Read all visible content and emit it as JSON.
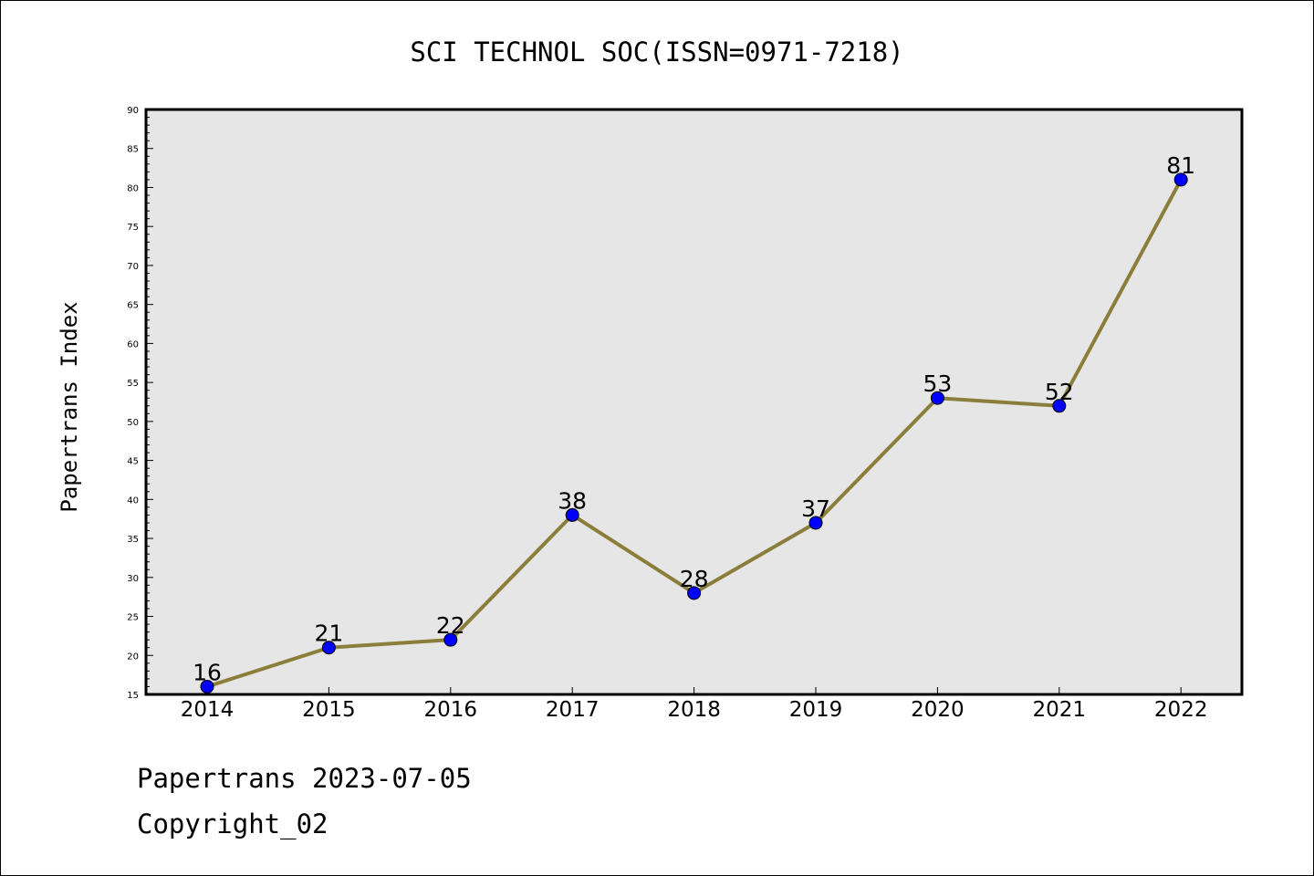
{
  "chart_data": {
    "type": "line",
    "title": "SCI TECHNOL SOC(ISSN=0971-7218)",
    "xlabel": "",
    "ylabel": "Papertrans Index",
    "categories": [
      "2014",
      "2015",
      "2016",
      "2017",
      "2018",
      "2019",
      "2020",
      "2021",
      "2022"
    ],
    "series": [
      {
        "values": [
          16,
          21,
          22,
          38,
          28,
          37,
          53,
          52,
          81
        ]
      }
    ],
    "ylim": [
      15,
      90
    ],
    "ytick_step": 5,
    "grid": false,
    "plot_background": "#e6e6e6",
    "line_color": "#8b7d3a",
    "marker_color": "#0000ff",
    "data_labels": true
  },
  "footer": {
    "date_text": "Papertrans 2023-07-05",
    "copyright_text": "Copyright_02"
  }
}
